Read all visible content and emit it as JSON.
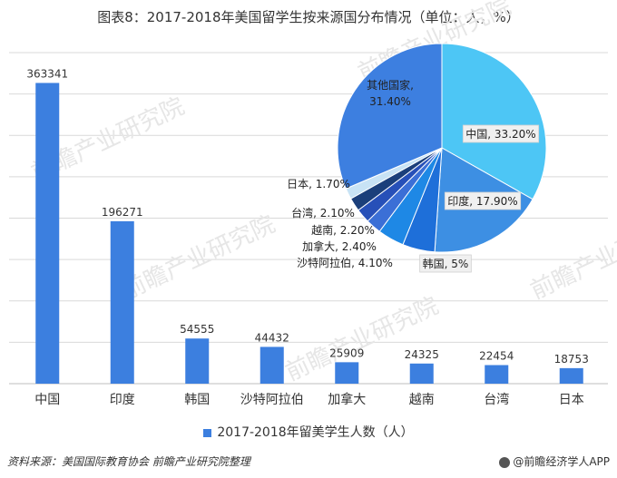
{
  "title": "图表8：2017-2018年美国留学生按来源国分布情况（单位：人，%）",
  "source": "资料来源：美国国际教育协会 前瞻产业研究院整理",
  "credit": "@前瞻经济学人APP",
  "watermark": "前瞻产业研究院",
  "colors": {
    "bar": "#3c7fdf",
    "grid": "#d9d9d9",
    "pie": [
      "#4dc6f5",
      "#3d8fe3",
      "#1e6fd9",
      "#1e88e5",
      "#3b6fd6",
      "#2750b8",
      "#1b3f7a",
      "#c8e3f5",
      "#3d7fe0"
    ]
  },
  "chart_data": [
    {
      "type": "bar",
      "categories": [
        "中国",
        "印度",
        "韩国",
        "沙特阿拉伯",
        "加拿大",
        "越南",
        "台湾",
        "日本"
      ],
      "series": [
        {
          "name": "2017-2018年留美学生人数（人）",
          "values": [
            363341,
            196271,
            54555,
            44432,
            25909,
            24325,
            22454,
            18753
          ]
        }
      ],
      "data_labels": [
        "363341",
        "196271",
        "54555",
        "44432",
        "25909",
        "24325",
        "22454",
        "18753"
      ],
      "ylim": [
        0,
        400000
      ],
      "grid": true,
      "legend": "bottom"
    },
    {
      "type": "pie",
      "labels": [
        "中国, 33.20%",
        "印度, 17.90%",
        "韩国, 5%",
        "沙特阿拉伯, 4.10%",
        "加拿大, 2.40%",
        "越南, 2.20%",
        "台湾, 2.10%",
        "日本, 1.70%",
        "其他国家, 31.40%"
      ],
      "values": [
        33.2,
        17.9,
        5.0,
        4.1,
        2.4,
        2.2,
        2.1,
        1.7,
        31.4
      ],
      "start": "12 o'clock",
      "direction": "clockwise"
    }
  ]
}
